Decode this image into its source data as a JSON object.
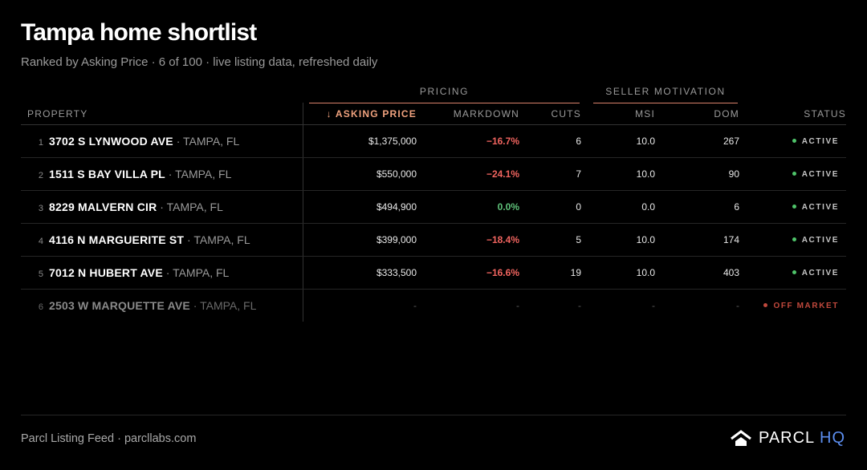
{
  "header": {
    "title": "Tampa home shortlist",
    "subtitle": "Ranked by Asking Price · 6 of 100 · live listing data, refreshed daily"
  },
  "groups": {
    "pricing": "PRICING",
    "seller": "SELLER MOTIVATION"
  },
  "columns": {
    "property": "PROPERTY",
    "asking_price": "ASKING PRICE",
    "markdown": "MARKDOWN",
    "cuts": "CUTS",
    "msi": "MSI",
    "dom": "DOM",
    "status": "STATUS"
  },
  "sort_arrow": "↓",
  "rows": [
    {
      "rank": "1",
      "street": "3702 S LYNWOOD AVE",
      "city": " · TAMPA, FL",
      "price": "$1,375,000",
      "markdown": "−16.7%",
      "markdown_type": "neg",
      "cuts": "6",
      "msi": "10.0",
      "dom": "267",
      "status": "ACTIVE"
    },
    {
      "rank": "2",
      "street": "1511 S BAY VILLA PL",
      "city": " · TAMPA, FL",
      "price": "$550,000",
      "markdown": "−24.1%",
      "markdown_type": "neg",
      "cuts": "7",
      "msi": "10.0",
      "dom": "90",
      "status": "ACTIVE"
    },
    {
      "rank": "3",
      "street": "8229 MALVERN CIR",
      "city": " · TAMPA, FL",
      "price": "$494,900",
      "markdown": "0.0%",
      "markdown_type": "zero",
      "cuts": "0",
      "msi": "0.0",
      "dom": "6",
      "status": "ACTIVE"
    },
    {
      "rank": "4",
      "street": "4116 N MARGUERITE ST",
      "city": " · TAMPA, FL",
      "price": "$399,000",
      "markdown": "−18.4%",
      "markdown_type": "neg",
      "cuts": "5",
      "msi": "10.0",
      "dom": "174",
      "status": "ACTIVE"
    },
    {
      "rank": "5",
      "street": "7012 N HUBERT AVE",
      "city": " · TAMPA, FL",
      "price": "$333,500",
      "markdown": "−16.6%",
      "markdown_type": "neg",
      "cuts": "19",
      "msi": "10.0",
      "dom": "403",
      "status": "ACTIVE"
    },
    {
      "rank": "6",
      "street": "2503 W MARQUETTE AVE",
      "city": " · TAMPA, FL",
      "price": "-",
      "markdown": "-",
      "markdown_type": "none",
      "cuts": "-",
      "msi": "-",
      "dom": "-",
      "status": "OFF MARKET"
    }
  ],
  "footer": {
    "source": "Parcl Listing Feed · parcllabs.com",
    "brand": "PARCL",
    "brand_accent": "HQ"
  },
  "colors": {
    "accent": "#f0a27e",
    "negative": "#f0645f",
    "positive": "#5fc27a",
    "active_dot": "#4fc46a",
    "off_market": "#c0483c",
    "brand_hq": "#5b8dee"
  },
  "icons": {
    "logo": "house-icon",
    "sort": "arrow-down-icon",
    "status": "dot-icon"
  }
}
